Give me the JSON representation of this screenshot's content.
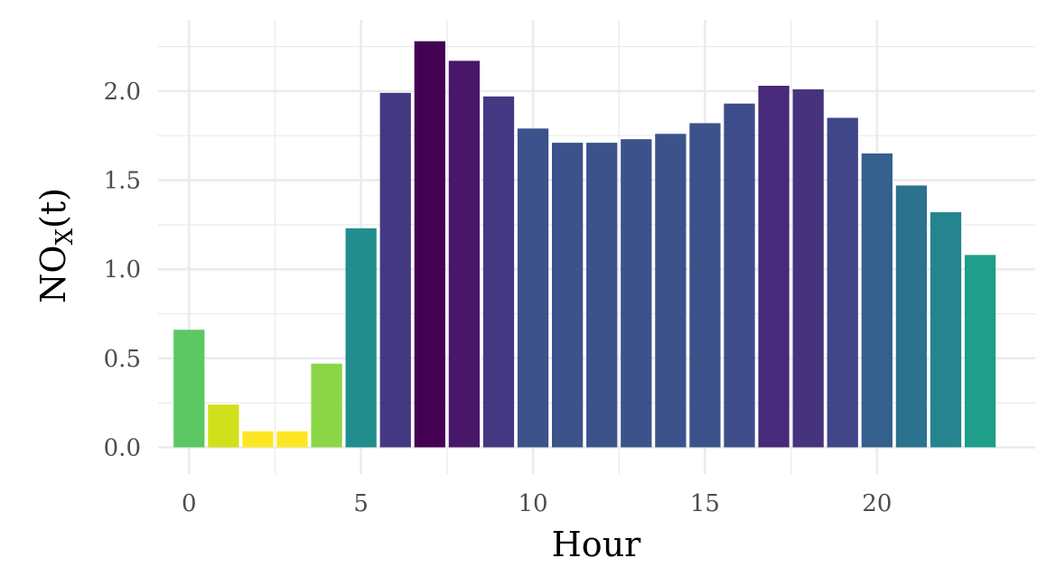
{
  "chart_data": {
    "type": "bar",
    "xlabel": "Hour",
    "ylabel_main": "NO",
    "ylabel_sub": "X",
    "ylabel_arg": "(t)",
    "x": [
      0,
      1,
      2,
      3,
      4,
      5,
      6,
      7,
      8,
      9,
      10,
      11,
      12,
      13,
      14,
      15,
      16,
      17,
      18,
      19,
      20,
      21,
      22,
      23
    ],
    "values": [
      0.66,
      0.24,
      0.09,
      0.09,
      0.47,
      1.23,
      1.99,
      2.28,
      2.17,
      1.97,
      1.79,
      1.71,
      1.71,
      1.73,
      1.76,
      1.82,
      1.93,
      2.03,
      2.01,
      1.85,
      1.65,
      1.47,
      1.32,
      1.08
    ],
    "colors": [
      "#5cc863",
      "#d0e11c",
      "#fde725",
      "#fde725",
      "#8bd646",
      "#218e8d",
      "#453882",
      "#440154",
      "#481769",
      "#453882",
      "#3b528b",
      "#3b528b",
      "#3b528b",
      "#3b528b",
      "#3b528b",
      "#3b528b",
      "#3e4c8a",
      "#472a7a",
      "#46337e",
      "#404688",
      "#355f8d",
      "#2c728e",
      "#25858e",
      "#1f9e89"
    ],
    "xlim": [
      -0.9,
      24.6
    ],
    "ylim": [
      -0.15,
      2.4
    ],
    "xticks": [
      0,
      5,
      10,
      15,
      20
    ],
    "xtick_labels": [
      "0",
      "5",
      "10",
      "15",
      "20"
    ],
    "yticks": [
      0,
      0.5,
      1,
      1.5,
      2
    ],
    "ytick_labels": [
      "0.0",
      "0.5",
      "1.0",
      "1.5",
      "2.0"
    ],
    "grid": true,
    "legend": false
  }
}
